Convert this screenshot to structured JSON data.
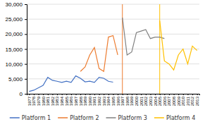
{
  "chart_data": {
    "type": "line",
    "categories": [
      "1977",
      "1978",
      "1979",
      "1980",
      "1981",
      "1982",
      "1983",
      "1984",
      "1985",
      "1986",
      "1987",
      "1988",
      "1989",
      "1990",
      "1991",
      "1992",
      "1993",
      "1994",
      "1995",
      "1996",
      "1997",
      "1998",
      "1999",
      "2000",
      "2001",
      "2002",
      "2003",
      "2004",
      "2005",
      "2006",
      "2007",
      "2008",
      "2009",
      "2010",
      "2011",
      "2012",
      "2013"
    ],
    "series": [
      {
        "name": "Platform 1",
        "color": "#4472C4",
        "values": [
          800,
          1200,
          2000,
          2800,
          5500,
          4500,
          4200,
          3800,
          4200,
          3800,
          6000,
          5200,
          4000,
          4200,
          3800,
          5500,
          5200,
          4200,
          3900,
          null,
          null,
          null,
          null,
          null,
          null,
          null,
          null,
          null,
          null,
          null,
          null,
          null,
          null,
          null,
          null,
          null,
          null
        ]
      },
      {
        "name": "Platform 2",
        "color": "#ED7D31",
        "values": [
          null,
          null,
          null,
          null,
          null,
          null,
          null,
          null,
          null,
          null,
          null,
          7500,
          9000,
          13000,
          15500,
          8500,
          7500,
          19000,
          19500,
          13000,
          null,
          null,
          null,
          null,
          null,
          null,
          null,
          null,
          null,
          null,
          null,
          null,
          null,
          null,
          null,
          null,
          null
        ]
      },
      {
        "name": "Platform 3",
        "color": "#808080",
        "values": [
          null,
          null,
          null,
          null,
          null,
          null,
          null,
          null,
          null,
          null,
          null,
          null,
          null,
          null,
          null,
          null,
          null,
          null,
          null,
          null,
          25500,
          13000,
          14000,
          20500,
          21000,
          21500,
          18500,
          19000,
          19000,
          18500,
          null,
          null,
          null,
          null,
          null,
          null,
          null
        ]
      },
      {
        "name": "Platform 4",
        "color": "#FFC000",
        "values": [
          null,
          null,
          null,
          null,
          null,
          null,
          null,
          null,
          null,
          null,
          null,
          null,
          null,
          null,
          null,
          null,
          null,
          null,
          null,
          null,
          null,
          null,
          null,
          null,
          null,
          null,
          null,
          null,
          24500,
          11000,
          10000,
          8000,
          13000,
          15000,
          10000,
          16000,
          14500
        ]
      }
    ],
    "vlines": [
      {
        "category": "1997",
        "color": "#ED7D31"
      },
      {
        "category": "2005",
        "color": "#FFC000"
      }
    ],
    "ylim": [
      0,
      30000
    ],
    "yticks": [
      0,
      {
        "value": 5000,
        "label": "5,000"
      },
      {
        "value": 10000,
        "label": "10,000"
      },
      {
        "value": 15000,
        "label": "15,000"
      },
      {
        "value": 20000,
        "label": "20,000"
      },
      {
        "value": 25000,
        "label": "25,000"
      },
      {
        "value": 30000,
        "label": "30,000"
      }
    ],
    "grid": true,
    "legend": "bottom"
  }
}
